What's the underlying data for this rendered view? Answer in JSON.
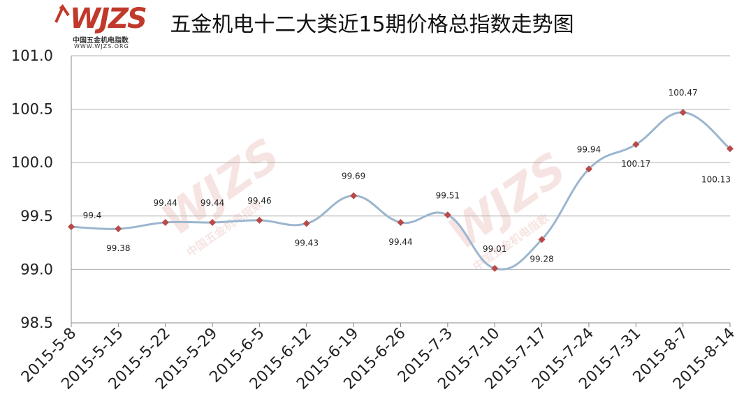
{
  "logo": {
    "mark": "WJZS",
    "cn": "中国五金机电指数",
    "url": "WWW.WJZS.ORG"
  },
  "watermark": {
    "mark": "WJZS",
    "cn": "中国五金机电指数",
    "url": "WWW.WJZS.ORG"
  },
  "chart_data": {
    "type": "line",
    "title": "五金机电十二大类近15期价格总指数走势图",
    "categories": [
      "2015-5-8",
      "2015-5-15",
      "2015-5-22",
      "2015-5-29",
      "2015-6-5",
      "2015-6-12",
      "2015-6-19",
      "2015-6-26",
      "2015-7-3",
      "2015-7-10",
      "2015-7-17",
      "2015-7-24",
      "2015-7-31",
      "2015-8-7",
      "2015-8-14"
    ],
    "series": [
      {
        "values": [
          99.4,
          99.38,
          99.44,
          99.44,
          99.46,
          99.43,
          99.69,
          99.44,
          99.51,
          99.01,
          99.28,
          99.94,
          100.17,
          100.47,
          100.13
        ],
        "labels": [
          "99.4",
          "99.38",
          "99.44",
          "99.44",
          "99.46",
          "99.43",
          "99.69",
          "99.44",
          "99.51",
          "99.01",
          "99.28",
          "99.94",
          "100.17",
          "100.47",
          "100.13"
        ]
      }
    ],
    "ylim": [
      98.5,
      101.0
    ],
    "yticks": [
      "98.5",
      "99.0",
      "99.5",
      "100.0",
      "100.5",
      "101.0"
    ],
    "xlabel": "",
    "ylabel": "",
    "grid": true,
    "line_color": "#9bb6cf",
    "marker_color": "#b94a48",
    "smooth": true
  }
}
